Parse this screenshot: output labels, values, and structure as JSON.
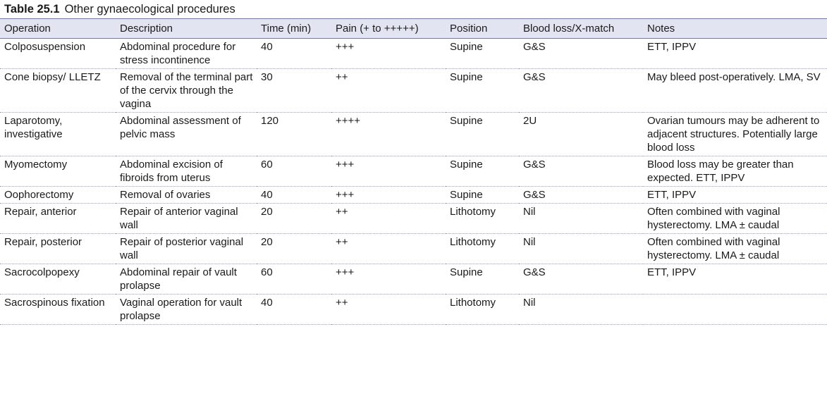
{
  "caption": {
    "number": "Table 25.1",
    "title": "Other gynaecological procedures"
  },
  "columns": [
    "Operation",
    "Description",
    "Time (min)",
    "Pain (+ to +++++)",
    "Position",
    "Blood loss/X-match",
    "Notes"
  ],
  "rows": [
    [
      "Colposuspension",
      "Abdominal procedure for stress incontinence",
      "40",
      "+++",
      "Supine",
      "G&S",
      "ETT, IPPV"
    ],
    [
      "Cone biopsy/ LLETZ",
      "Removal of the terminal part of the cervix through the vagina",
      "30",
      "++",
      "Supine",
      "G&S",
      "May bleed post-operatively. LMA, SV"
    ],
    [
      "Laparotomy, investigative",
      "Abdominal assessment of pelvic mass",
      "120",
      "++++",
      "Supine",
      "2U",
      "Ovarian tumours may be adherent to adjacent structures. Potentially large blood loss"
    ],
    [
      "Myomectomy",
      "Abdominal excision of fibroids from uterus",
      "60",
      "+++",
      "Supine",
      "G&S",
      "Blood loss may be greater than expected. ETT, IPPV"
    ],
    [
      "Oophorectomy",
      "Removal of ovaries",
      "40",
      "+++",
      "Supine",
      "G&S",
      "ETT, IPPV"
    ],
    [
      "Repair, anterior",
      "Repair of anterior vaginal wall",
      "20",
      "++",
      "Lithotomy",
      "Nil",
      "Often combined with vaginal hysterectomy. LMA ± caudal"
    ],
    [
      "Repair, posterior",
      "Repair of posterior vaginal wall",
      "20",
      "++",
      "Lithotomy",
      "Nil",
      "Often combined with vaginal hysterectomy. LMA ± caudal"
    ],
    [
      "Sacrocolpopexy",
      "Abdominal repair of vault prolapse",
      "60",
      "+++",
      "Supine",
      "G&S",
      "ETT, IPPV"
    ],
    [
      "Sacrospinous fixation",
      "Vaginal operation for vault prolapse",
      "40",
      "++",
      "Lithotomy",
      "Nil",
      ""
    ]
  ]
}
